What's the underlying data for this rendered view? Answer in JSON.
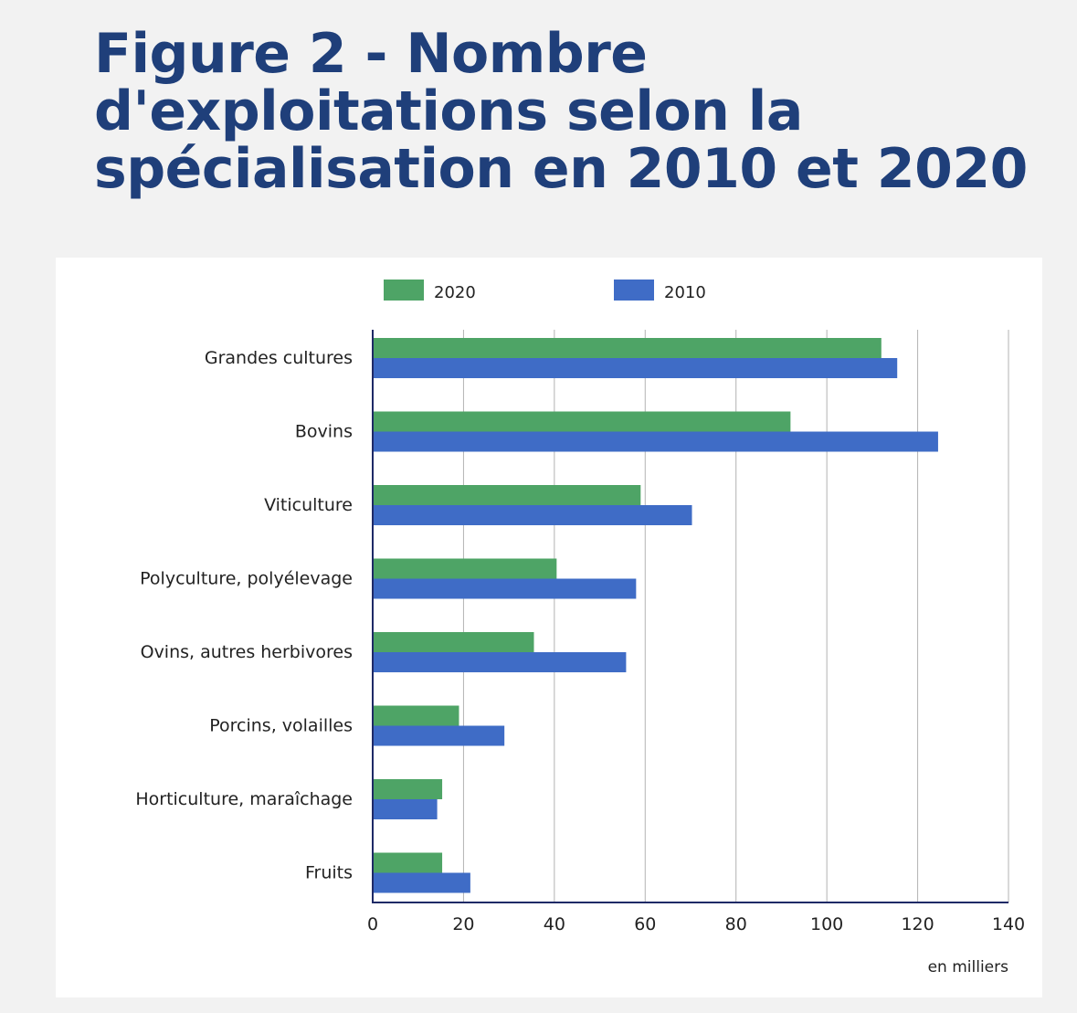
{
  "title": "Figure 2 - Nombre d'exploitations selon la spécialisation en 2010 et 2020",
  "chart_data": {
    "type": "bar",
    "orientation": "horizontal",
    "title": "Figure 2 - Nombre d'exploitations selon la spécialisation en 2010 et 2020",
    "categories": [
      "Grandes cultures",
      "Bovins",
      "Viticulture",
      "Polyculture, polyélevage",
      "Ovins, autres herbivores",
      "Porcins, volailles",
      "Horticulture, maraîchage",
      "Fruits"
    ],
    "series": [
      {
        "name": "2020",
        "color": "#4ea466",
        "values": [
          112,
          92,
          59,
          40.5,
          35.5,
          19,
          15.3,
          15.3
        ]
      },
      {
        "name": "2010",
        "color": "#3f6cc6",
        "values": [
          115.5,
          124.5,
          70.3,
          58,
          55.8,
          29,
          14.2,
          21.5
        ]
      }
    ],
    "xlim": [
      0,
      140
    ],
    "xticks": [
      0,
      20,
      40,
      60,
      80,
      100,
      120,
      140
    ],
    "xlabel": "en milliers",
    "ylabel": "",
    "grid": "vertical",
    "legend": "top"
  },
  "colors": {
    "title": "#1f3f7a",
    "axis": "#1f2a66",
    "grid": "#b3b3b3"
  }
}
